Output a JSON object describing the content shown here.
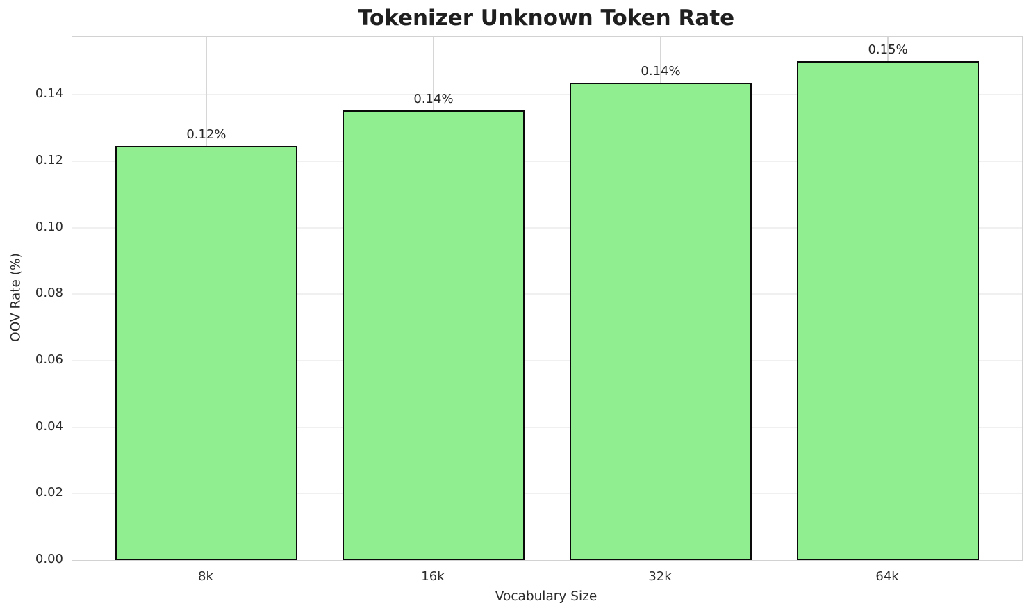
{
  "title": "Tokenizer Unknown Token Rate",
  "axes": {
    "xlabel": "Vocabulary Size",
    "ylabel": "OOV Rate (%)"
  },
  "chart_data": {
    "type": "bar",
    "title": "Tokenizer Unknown Token Rate",
    "xlabel": "Vocabulary Size",
    "ylabel": "OOV Rate (%)",
    "categories": [
      "8k",
      "16k",
      "32k",
      "64k"
    ],
    "values": [
      0.1245,
      0.1352,
      0.1436,
      0.15
    ],
    "bar_labels": [
      "0.12%",
      "0.14%",
      "0.14%",
      "0.15%"
    ],
    "ytick_values": [
      0.0,
      0.02,
      0.04,
      0.06,
      0.08,
      0.1,
      0.12,
      0.14
    ],
    "ytick_labels": [
      "0.00",
      "0.02",
      "0.04",
      "0.06",
      "0.08",
      "0.10",
      "0.12",
      "0.14"
    ],
    "ylim": [
      0,
      0.1574
    ],
    "grid": true,
    "legend": false,
    "bar_color": "#90ee90",
    "bar_edge_color": "#0a0a0a",
    "background_color": "#ffffff",
    "h_grid_color": "#f0f0f0",
    "v_grid_color": "#d6d6d6",
    "spine_color": "#d2d2d2",
    "text_color": "#262626"
  }
}
